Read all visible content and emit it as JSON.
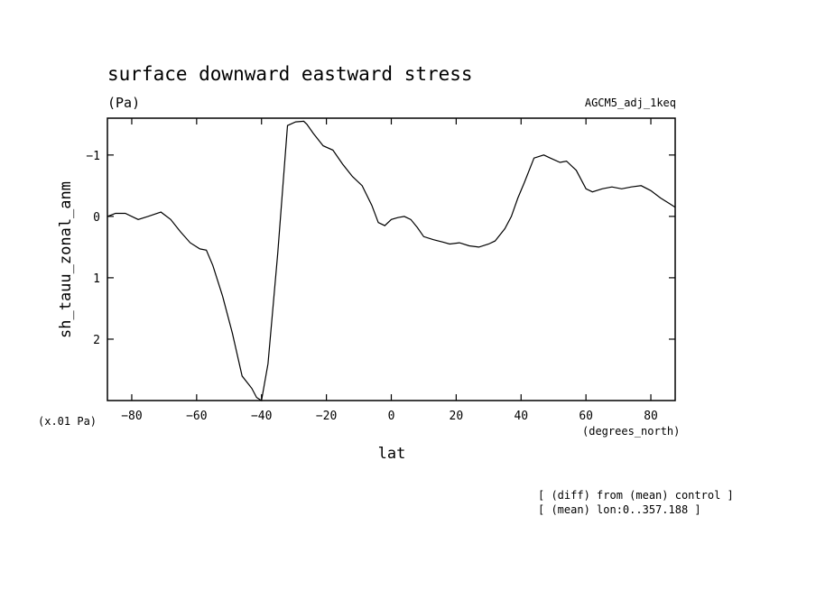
{
  "chart_data": {
    "type": "line",
    "title": "surface downward eastward stress",
    "units": "(Pa)",
    "experiment": "AGCM5_adj_1keq",
    "xlabel": "lat",
    "xunits": "(degrees_north)",
    "ylabel": "sh_tauu_zonal_anm",
    "yscale_note": "(x.01 Pa)",
    "xlim": [
      -87.5,
      87.5
    ],
    "ylim": [
      3.0,
      -1.6
    ],
    "y_inverted": true,
    "xticks": [
      -80,
      -60,
      -40,
      -20,
      0,
      20,
      40,
      60,
      80
    ],
    "xtick_labels": [
      "−80",
      "−60",
      "−40",
      "−20",
      "0",
      "20",
      "40",
      "60",
      "80"
    ],
    "yticks": [
      -1,
      0,
      1,
      2
    ],
    "ytick_labels": [
      "−1",
      "0",
      "1",
      "2"
    ],
    "grid": false,
    "legend": "none",
    "series": [
      {
        "color": "#000000",
        "x": [
          -87.5,
          -85,
          -82,
          -78,
          -75,
          -71,
          -68,
          -65,
          -62,
          -59,
          -57,
          -55,
          -52,
          -49,
          -46,
          -43,
          -41.5,
          -40,
          -38,
          -35,
          -32,
          -29.5,
          -27,
          -26,
          -24,
          -21,
          -18,
          -15,
          -12,
          -9,
          -6,
          -4,
          -2,
          0,
          2,
          4,
          6,
          8,
          10,
          13,
          16,
          18,
          21,
          24,
          27,
          30,
          32,
          35,
          37,
          39,
          41,
          44,
          47,
          49,
          52,
          54,
          57,
          60,
          62,
          65,
          68,
          71,
          74,
          77,
          80,
          83,
          86,
          87.5
        ],
        "y": [
          0.0,
          -0.05,
          -0.05,
          0.05,
          0.0,
          -0.07,
          0.05,
          0.25,
          0.43,
          0.53,
          0.55,
          0.8,
          1.3,
          1.9,
          2.6,
          2.8,
          2.95,
          3.0,
          2.4,
          0.6,
          -1.48,
          -1.54,
          -1.55,
          -1.5,
          -1.35,
          -1.15,
          -1.08,
          -0.85,
          -0.65,
          -0.5,
          -0.18,
          0.1,
          0.15,
          0.05,
          0.02,
          0.0,
          0.05,
          0.18,
          0.33,
          0.38,
          0.42,
          0.45,
          0.43,
          0.48,
          0.5,
          0.45,
          0.4,
          0.2,
          0.0,
          -0.3,
          -0.55,
          -0.95,
          -1.0,
          -0.95,
          -0.88,
          -0.9,
          -0.75,
          -0.45,
          -0.4,
          -0.45,
          -0.48,
          -0.45,
          -0.48,
          -0.5,
          -0.42,
          -0.3,
          -0.2,
          -0.15
        ]
      }
    ]
  },
  "annotations": {
    "line1": "[ (diff) from (mean) control ]",
    "line2": "[ (mean) lon:0..357.188 ]"
  }
}
